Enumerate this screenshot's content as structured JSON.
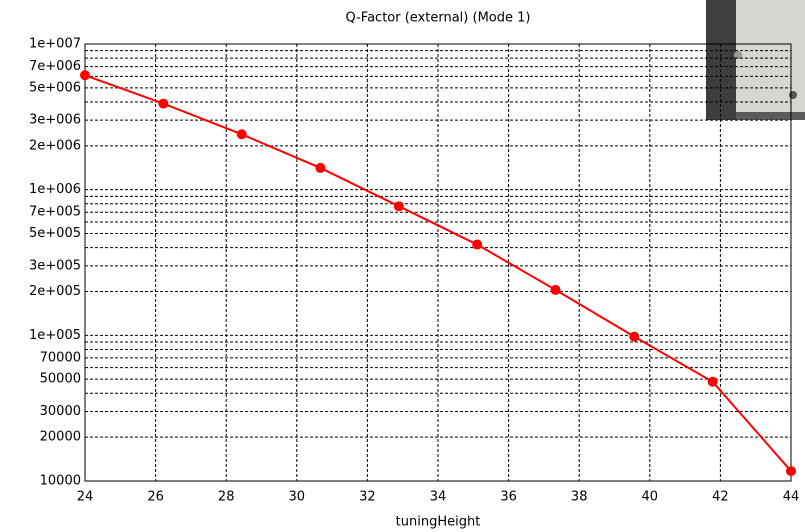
{
  "chart_data": {
    "type": "line",
    "title": "Q-Factor (external) (Mode 1)",
    "x_label": "tuningHeight",
    "x": [
      24,
      26.22,
      28.44,
      30.67,
      32.89,
      35.11,
      37.33,
      39.56,
      41.78,
      44
    ],
    "series": [
      {
        "name": "Q-Factor (external) (Mode 1)",
        "color": "#ff0000",
        "values": [
          6100000,
          3900000,
          2400000,
          1410000,
          770000,
          420000,
          205000,
          98000,
          48000,
          11700
        ]
      }
    ],
    "xlim": [
      24,
      44
    ],
    "xticks": [
      24,
      26,
      28,
      30,
      32,
      34,
      36,
      38,
      40,
      42,
      44
    ],
    "ylim": [
      10000,
      10000000
    ],
    "log_y": true,
    "grid": true,
    "yticks": [
      {
        "value": 10000000,
        "label": "1e+007"
      },
      {
        "value": 7000000,
        "label": "7e+006"
      },
      {
        "value": 5000000,
        "label": "5e+006"
      },
      {
        "value": 3000000,
        "label": "3e+006"
      },
      {
        "value": 2000000,
        "label": "2e+006"
      },
      {
        "value": 1000000,
        "label": "1e+006"
      },
      {
        "value": 700000,
        "label": "7e+005"
      },
      {
        "value": 500000,
        "label": "5e+005"
      },
      {
        "value": 300000,
        "label": "3e+005"
      },
      {
        "value": 200000,
        "label": "2e+005"
      },
      {
        "value": 100000,
        "label": "1e+005"
      },
      70000,
      50000,
      30000,
      20000,
      10000
    ],
    "minor_yticks": [
      9000000,
      8000000,
      6000000,
      4000000,
      900000,
      800000,
      600000,
      400000,
      90000,
      80000,
      60000,
      40000
    ]
  }
}
